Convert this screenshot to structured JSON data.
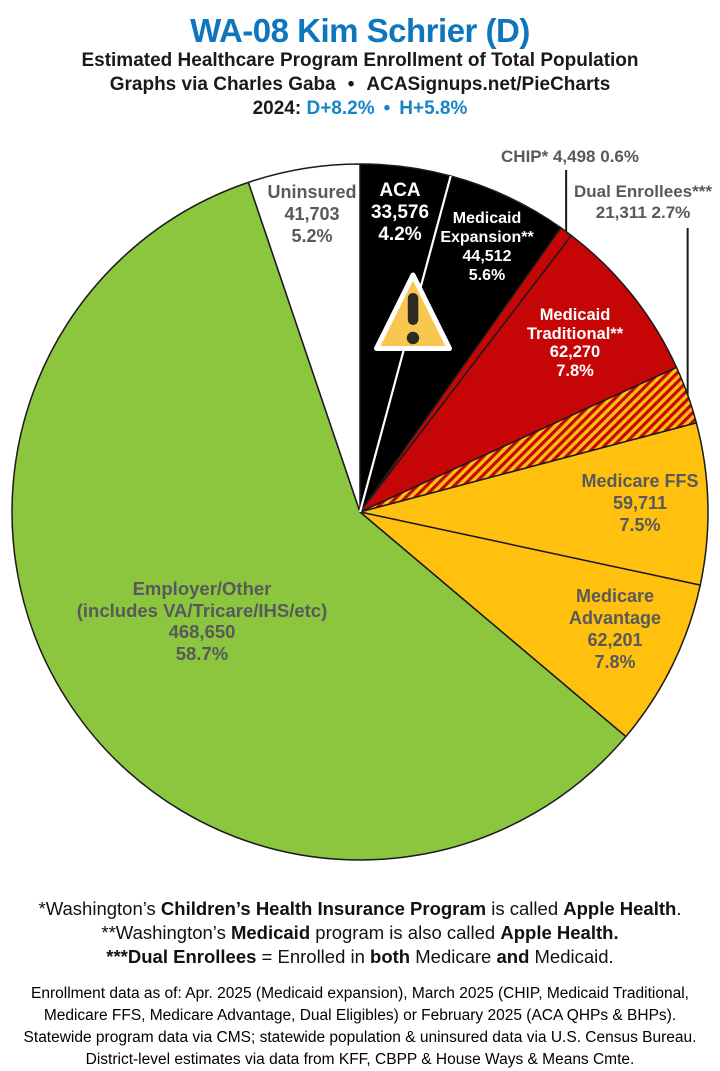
{
  "header": {
    "title": "WA-08 Kim Schrier (D)",
    "subtitle": "Estimated Healthcare Program Enrollment of Total Population",
    "credit_prefix": "Graphs via Charles Gaba",
    "credit_separator": "•",
    "credit_site": "ACASignups.net/PieCharts",
    "partisan_year": "2024:",
    "partisan_d": "D+8.2%",
    "partisan_separator": "•",
    "partisan_h": "H+5.8%"
  },
  "colors": {
    "title_blue": "#0D76BC",
    "partisan_blue": "#1586C9",
    "label_gray": "#58595B",
    "slice_black": "#000000",
    "slice_red": "#C60606",
    "slice_yellow": "#FFC10E",
    "slice_green": "#8CC63F",
    "slice_white": "#FFFFFF",
    "outline": "#1A1A1A",
    "warning_fill": "#F8C74F"
  },
  "icons": {
    "warning": "warning-triangle-exclamation-icon"
  },
  "chart_data": {
    "type": "pie",
    "title": "WA-08 Kim Schrier (D) — Estimated Healthcare Program Enrollment of Total Population",
    "units": "people",
    "start_angle_deg": 0,
    "direction": "clockwise",
    "legend_position": "labels-on-chart",
    "slices": [
      {
        "label": "ACA",
        "value": 33576,
        "value_text": "33,576",
        "pct": 4.2,
        "pct_text": "4.2%",
        "color": "#000000",
        "text_color": "#ffffff",
        "display_lines": [
          "ACA",
          "33,576",
          "4.2%"
        ]
      },
      {
        "label": "Medicaid Expansion**",
        "value": 44512,
        "value_text": "44,512",
        "pct": 5.6,
        "pct_text": "5.6%",
        "color": "#000000",
        "text_color": "#ffffff",
        "display_lines": [
          "Medicaid",
          "Expansion**",
          "44,512",
          "5.6%"
        ]
      },
      {
        "label": "CHIP*",
        "value": 4498,
        "value_text": "4,498",
        "pct": 0.6,
        "pct_text": "0.6%",
        "color": "#C60606",
        "text_color": "#58595B",
        "display_lines": [
          "CHIP* 4,498 0.6%"
        ]
      },
      {
        "label": "Medicaid Traditional**",
        "value": 62270,
        "value_text": "62,270",
        "pct": 7.8,
        "pct_text": "7.8%",
        "color": "#C60606",
        "text_color": "#ffffff",
        "display_lines": [
          "Medicaid",
          "Traditional**",
          "62,270",
          "7.8%"
        ]
      },
      {
        "label": "Dual Enrollees***",
        "value": 21311,
        "value_text": "21,311",
        "pct": 2.7,
        "pct_text": "2.7%",
        "color": "hatch",
        "hatch": true,
        "hatch_colors": [
          "#FFC10E",
          "#C60606"
        ],
        "text_color": "#58595B",
        "display_lines": [
          "Dual Enrollees***",
          "21,311 2.7%"
        ]
      },
      {
        "label": "Medicare FFS",
        "value": 59711,
        "value_text": "59,711",
        "pct": 7.5,
        "pct_text": "7.5%",
        "color": "#FFC10E",
        "text_color": "#58595B",
        "display_lines": [
          "Medicare FFS",
          "59,711",
          "7.5%"
        ]
      },
      {
        "label": "Medicare Advantage",
        "value": 62201,
        "value_text": "62,201",
        "pct": 7.8,
        "pct_text": "7.8%",
        "color": "#FFC10E",
        "text_color": "#58595B",
        "display_lines": [
          "Medicare",
          "Advantage",
          "62,201",
          "7.8%"
        ]
      },
      {
        "label": "Employer/Other (includes VA/Tricare/IHS/etc)",
        "value": 468650,
        "value_text": "468,650",
        "pct": 58.7,
        "pct_text": "58.7%",
        "color": "#8CC63F",
        "text_color": "#58595B",
        "display_lines": [
          "Employer/Other",
          "(includes VA/Tricare/IHS/etc)",
          "468,650",
          "58.7%"
        ]
      },
      {
        "label": "Uninsured",
        "value": 41703,
        "value_text": "41,703",
        "pct": 5.2,
        "pct_text": "5.2%",
        "color": "#FFFFFF",
        "text_color": "#58595B",
        "display_lines": [
          "Uninsured",
          "41,703",
          "5.2%"
        ]
      }
    ]
  },
  "footnotes": {
    "lines": [
      [
        {
          "t": "*Washington’s ",
          "b": false
        },
        {
          "t": "Children’s Health Insurance Program",
          "b": true
        },
        {
          "t": " is called ",
          "b": false
        },
        {
          "t": "Apple Health",
          "b": true
        },
        {
          "t": ".",
          "b": false
        }
      ],
      [
        {
          "t": "**Washington’s ",
          "b": false
        },
        {
          "t": "Medicaid",
          "b": true
        },
        {
          "t": " program is also called ",
          "b": false
        },
        {
          "t": "Apple Health.",
          "b": true
        }
      ],
      [
        {
          "t": "***Dual Enrollees",
          "b": true
        },
        {
          "t": " = Enrolled in ",
          "b": false
        },
        {
          "t": "both",
          "b": true
        },
        {
          "t": " Medicare ",
          "b": false
        },
        {
          "t": "and",
          "b": true
        },
        {
          "t": " Medicaid.",
          "b": false
        }
      ]
    ]
  },
  "footer": {
    "lines": [
      "Enrollment data as of: Apr. 2025 (Medicaid expansion), March 2025 (CHIP, Medicaid Traditional,",
      "Medicare FFS, Medicare Advantage, Dual Eligibles) or February 2025 (ACA QHPs & BHPs).",
      "Statewide program data via CMS; statewide population & uninsured data via U.S. Census Bureau.",
      "District-level estimates via data from KFF, CBPP & House Ways & Means Cmte."
    ]
  }
}
